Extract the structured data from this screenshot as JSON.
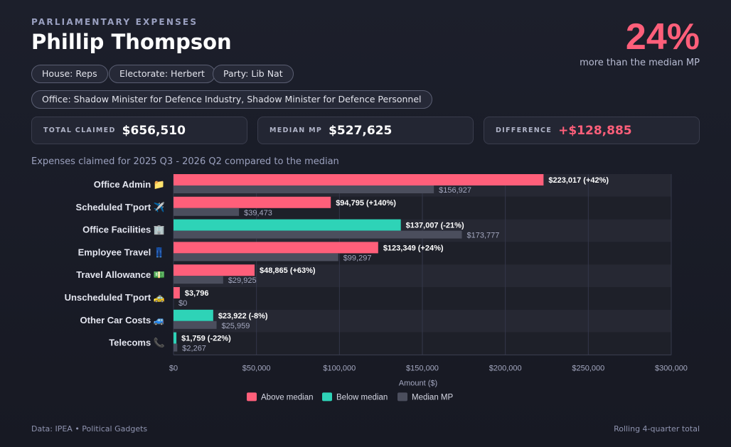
{
  "header": {
    "eyebrow": "PARLIAMENTARY EXPENSES",
    "name": "Phillip Thompson",
    "pct": "24%",
    "pct_label": "more than the median MP"
  },
  "pills": {
    "house": "House: Reps",
    "electorate": "Electorate: Herbert",
    "party": "Party: Lib Nat",
    "office": "Office: Shadow Minister for Defence Industry, Shadow Minister for Defence Personnel"
  },
  "stats": {
    "total_label": "TOTAL CLAIMED",
    "total_value": "$656,510",
    "median_label": "MEDIAN MP",
    "median_value": "$527,625",
    "diff_label": "DIFFERENCE",
    "diff_value": "+$128,885"
  },
  "subtitle": "Expenses claimed for 2025 Q3 - 2026 Q2 compared to the median",
  "footer": {
    "left": "Data: IPEA • Political Gadgets",
    "right": "Rolling 4-quarter total"
  },
  "colors": {
    "above": "#ff5f7a",
    "below": "#2ed3b7",
    "median": "#4b4e5d"
  },
  "chart_data": {
    "type": "bar",
    "orientation": "horizontal",
    "categories": [
      "Office Admin 📁",
      "Scheduled T'port ✈️",
      "Office Facilities 🏢",
      "Employee Travel 👖",
      "Travel Allowance 💵",
      "Unscheduled T'port 🚕",
      "Other Car Costs 🚙",
      "Telecoms 📞"
    ],
    "series": [
      {
        "name": "",
        "values": [
          223017,
          94795,
          137007,
          123349,
          48865,
          3796,
          23922,
          1759
        ],
        "labels": [
          "$223,017 (+42%)",
          "$94,795 (+140%)",
          "$137,007 (-21%)",
          "$123,349 (+24%)",
          "$48,865 (+63%)",
          "$3,796",
          "$23,922 (-8%)",
          "$1,759 (-22%)"
        ],
        "status": [
          "above",
          "above",
          "below",
          "above",
          "above",
          "above",
          "below",
          "below"
        ]
      },
      {
        "name": "Median MP",
        "values": [
          156927,
          39473,
          173777,
          99297,
          29925,
          0,
          25959,
          2267
        ],
        "labels": [
          "$156,927",
          "$39,473",
          "$173,777",
          "$99,297",
          "$29,925",
          "$0",
          "$25,959",
          "$2,267"
        ]
      }
    ],
    "xlim": [
      0,
      300000
    ],
    "xticks": [
      0,
      50000,
      100000,
      150000,
      200000,
      250000,
      300000
    ],
    "xtick_labels": [
      "$0",
      "$50,000",
      "$100,000",
      "$150,000",
      "$200,000",
      "$250,000",
      "$300,000"
    ],
    "xlabel": "Amount ($)",
    "ylabel": "",
    "grid": true,
    "legend": {
      "placement": "bottom",
      "entries": [
        {
          "key": "above",
          "label": "Above median"
        },
        {
          "key": "below",
          "label": "Below median"
        },
        {
          "key": "median",
          "label": "Median MP"
        }
      ]
    }
  }
}
